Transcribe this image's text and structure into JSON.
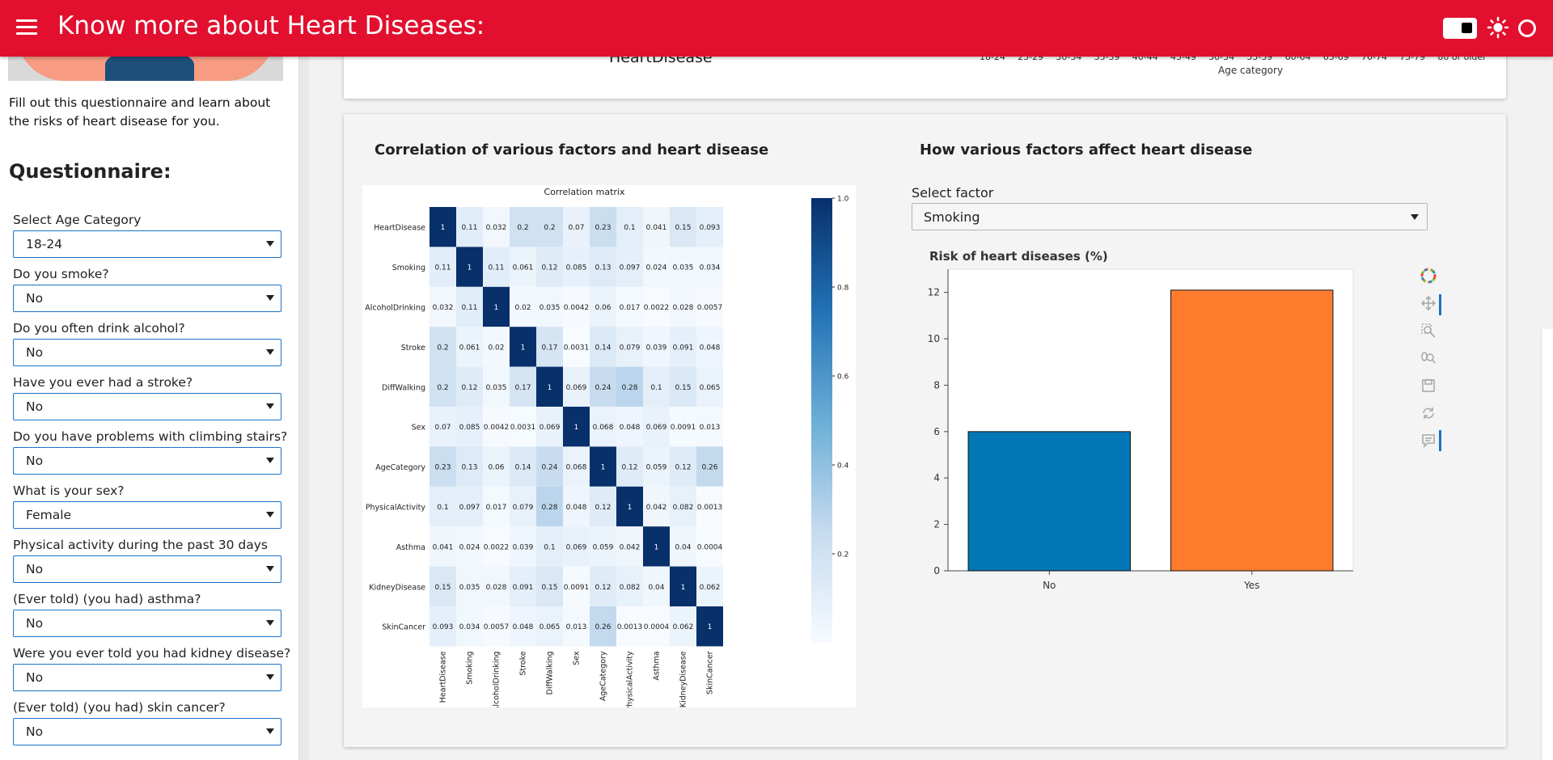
{
  "header": {
    "title": "Know more about Heart Diseases:",
    "bg_color": "#e20f2e"
  },
  "sidebar": {
    "intro": "Fill out this questionnaire and learn about the risks of heart disease for you.",
    "questionnaire_heading": "Questionnaire:",
    "fields": [
      {
        "label": "Select Age Category",
        "value": "18-24"
      },
      {
        "label": "Do you smoke?",
        "value": "No"
      },
      {
        "label": "Do you often drink alcohol?",
        "value": "No"
      },
      {
        "label": "Have you ever had a stroke?",
        "value": "No"
      },
      {
        "label": "Do you have problems with climbing stairs?",
        "value": "No"
      },
      {
        "label": "What is your sex?",
        "value": "Female"
      },
      {
        "label": "Physical activity during the past 30 days",
        "value": "No"
      },
      {
        "label": "(Ever told) (you had) asthma?",
        "value": "No"
      },
      {
        "label": "Were you ever told you had kidney disease?",
        "value": "No"
      },
      {
        "label": "(Ever told) (you had) skin cancer?",
        "value": "No"
      }
    ]
  },
  "top_card": {
    "partial_title": "HeartDisease",
    "age_ticks": [
      "18-24",
      "25-29",
      "30-34",
      "35-39",
      "40-44",
      "45-49",
      "50-54",
      "55-59",
      "60-64",
      "65-69",
      "70-74",
      "75-79",
      "80 or older"
    ],
    "age_axis_label": "Age category"
  },
  "correlation_section": {
    "title": "Correlation of various factors and heart disease"
  },
  "factor_section": {
    "title": "How various factors affect heart disease",
    "select_label": "Select factor",
    "select_value": "Smoking"
  },
  "chart_data": [
    {
      "type": "heatmap",
      "title": "Correlation matrix",
      "labels": [
        "HeartDisease",
        "Smoking",
        "AlcoholDrinking",
        "Stroke",
        "DiffWalking",
        "Sex",
        "AgeCategory",
        "PhysicalActivity",
        "Asthma",
        "KidneyDisease",
        "SkinCancer"
      ],
      "values": [
        [
          "1",
          "0.11",
          "0.032",
          "0.2",
          "0.2",
          "0.07",
          "0.23",
          "0.1",
          "0.041",
          "0.15",
          "0.093"
        ],
        [
          "0.11",
          "1",
          "0.11",
          "0.061",
          "0.12",
          "0.085",
          "0.13",
          "0.097",
          "0.024",
          "0.035",
          "0.034"
        ],
        [
          "0.032",
          "0.11",
          "1",
          "0.02",
          "0.035",
          "0.0042",
          "0.06",
          "0.017",
          "0.0022",
          "0.028",
          "0.0057"
        ],
        [
          "0.2",
          "0.061",
          "0.02",
          "1",
          "0.17",
          "0.0031",
          "0.14",
          "0.079",
          "0.039",
          "0.091",
          "0.048"
        ],
        [
          "0.2",
          "0.12",
          "0.035",
          "0.17",
          "1",
          "0.069",
          "0.24",
          "0.28",
          "0.1",
          "0.15",
          "0.065"
        ],
        [
          "0.07",
          "0.085",
          "0.0042",
          "0.0031",
          "0.069",
          "1",
          "0.068",
          "0.048",
          "0.069",
          "0.0091",
          "0.013"
        ],
        [
          "0.23",
          "0.13",
          "0.06",
          "0.14",
          "0.24",
          "0.068",
          "1",
          "0.12",
          "0.059",
          "0.12",
          "0.26"
        ],
        [
          "0.1",
          "0.097",
          "0.017",
          "0.079",
          "0.28",
          "0.048",
          "0.12",
          "1",
          "0.042",
          "0.082",
          "0.0013"
        ],
        [
          "0.041",
          "0.024",
          "0.0022",
          "0.039",
          "0.1",
          "0.069",
          "0.059",
          "0.042",
          "1",
          "0.04",
          "0.0004"
        ],
        [
          "0.15",
          "0.035",
          "0.028",
          "0.091",
          "0.15",
          "0.0091",
          "0.12",
          "0.082",
          "0.04",
          "1",
          "0.062"
        ],
        [
          "0.093",
          "0.034",
          "0.0057",
          "0.048",
          "0.065",
          "0.013",
          "0.26",
          "0.0013",
          "0.0004",
          "0.062",
          "1"
        ]
      ],
      "colorbar_ticks": [
        "1.0",
        "0.8",
        "0.6",
        "0.4",
        "0.2"
      ],
      "colorbar_range": [
        0,
        1
      ],
      "colormap": [
        "#f7fbff",
        "#c6dbef",
        "#6baed6",
        "#2171b5",
        "#08306b"
      ]
    },
    {
      "type": "bar",
      "title": "Risk of heart diseases (%)",
      "categories": [
        "No",
        "Yes"
      ],
      "values": [
        6.0,
        12.1
      ],
      "colors": [
        "#0277b5",
        "#ff7b2d"
      ],
      "ylim": [
        0,
        13
      ],
      "yticks": [
        0,
        2,
        4,
        6,
        8,
        10,
        12
      ]
    }
  ],
  "toolbar_icons": [
    "bokeh-logo-icon",
    "pan-icon",
    "box-zoom-icon",
    "wheel-zoom-icon",
    "save-icon",
    "reset-icon",
    "hover-icon"
  ]
}
